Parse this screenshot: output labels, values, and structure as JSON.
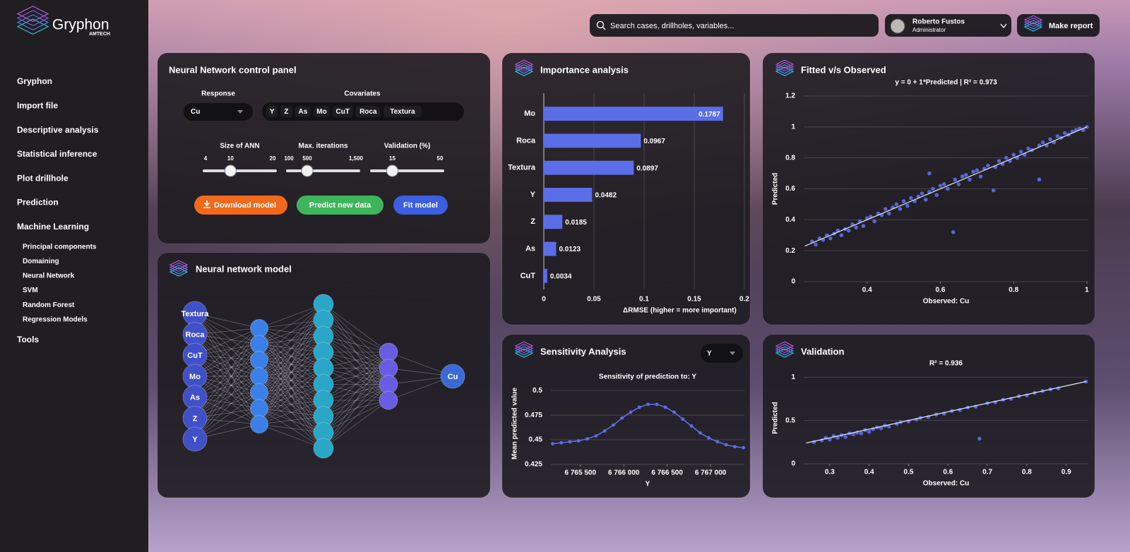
{
  "brand": {
    "name": "Gryphon",
    "tagline": "AMTECH"
  },
  "nav": {
    "items": [
      {
        "label": "Gryphon"
      },
      {
        "label": "Import file"
      },
      {
        "label": "Descriptive analysis"
      },
      {
        "label": "Statistical inference"
      },
      {
        "label": "Plot drillhole"
      },
      {
        "label": "Prediction"
      },
      {
        "label": "Machine Learning",
        "children": [
          "Principal components",
          "Domaining",
          "Neural Network",
          "SVM",
          "Random Forest",
          "Regression Models"
        ]
      },
      {
        "label": "Tools"
      }
    ]
  },
  "header": {
    "search_placeholder": "Search cases, drillholes, variables...",
    "user_name": "Roberto Fustos",
    "user_role": "Administrator",
    "report_button": "Make report"
  },
  "control_panel": {
    "title": "Neural Network control panel",
    "response_label": "Response",
    "response_value": "Cu",
    "covariates_label": "Covariates",
    "covariates": [
      "Y",
      "Z",
      "As",
      "Mo",
      "CuT",
      "Roca",
      "Textura"
    ],
    "sliders": [
      {
        "label": "Size of ANN",
        "min": 4,
        "max": 20,
        "value": 10
      },
      {
        "label": "Max. iterations",
        "min": 100,
        "max": {
          "value": 1500,
          "label": "1,500"
        },
        "value": 500
      },
      {
        "label": "Validation (%)",
        "max": 50,
        "value": 15
      }
    ],
    "buttons": [
      "Download model",
      "Predict new data",
      "Fit model"
    ]
  },
  "nn_model": {
    "title": "Neural network model",
    "inputs": [
      "Textura",
      "Roca",
      "CuT",
      "Mo",
      "As",
      "Z",
      "Y"
    ],
    "hidden_layers": [
      7,
      10,
      4
    ],
    "output": "Cu"
  },
  "chart_data": [
    {
      "type": "bar",
      "orientation": "horizontal",
      "title": "Importance analysis",
      "xlabel": "ΔRMSE (higher = more important)",
      "categories": [
        "Mo",
        "Roca",
        "Textura",
        "Y",
        "Z",
        "As",
        "CuT"
      ],
      "values": [
        0.1787,
        0.0967,
        0.0897,
        0.0482,
        0.0185,
        0.0123,
        0.0034
      ],
      "color": "#5b6ee8",
      "xlim": [
        0,
        0.2
      ],
      "xticks": [
        0,
        0.05,
        0.1,
        0.15,
        0.2
      ],
      "grid": true
    },
    {
      "type": "line",
      "title": "Sensitivity Analysis",
      "subtitle": "Sensitivity of prediction to: Y",
      "selector": "Y",
      "xlabel": "Y",
      "ylabel": "Mean predicted value",
      "color": "#5b6ee8",
      "x": [
        6765180,
        6765280,
        6765380,
        6765480,
        6765580,
        6765680,
        6765780,
        6765880,
        6765980,
        6766080,
        6766180,
        6766280,
        6766380,
        6766480,
        6766580,
        6766680,
        6766780,
        6766880,
        6766980,
        6767080,
        6767180,
        6767280,
        6767380
      ],
      "values": [
        0.446,
        0.447,
        0.448,
        0.449,
        0.451,
        0.454,
        0.459,
        0.465,
        0.472,
        0.478,
        0.483,
        0.486,
        0.486,
        0.483,
        0.478,
        0.471,
        0.464,
        0.457,
        0.452,
        0.448,
        0.445,
        0.443,
        0.442
      ],
      "xlim": [
        6765160,
        6767390
      ],
      "xticks": [
        {
          "value": 6765500,
          "label": "6 765 500"
        },
        {
          "value": 6766000,
          "label": "6 766 000"
        },
        {
          "value": 6766500,
          "label": "6 766 500"
        },
        {
          "value": 6767000,
          "label": "6 767 000"
        }
      ],
      "ylim": [
        0.425,
        0.508
      ],
      "yticks": [
        0.425,
        0.45,
        0.475,
        0.5
      ],
      "grid": true
    },
    {
      "type": "scatter",
      "title": "Fitted v/s Observed",
      "subtitle": "y = 0 + 1*Predicted | R² = 0.973",
      "xlabel": "Observed: Cu",
      "ylabel": "Predicted",
      "color": "#5b6ee8",
      "fit_color": "#e8e8f4",
      "x": [
        0.25,
        0.26,
        0.27,
        0.28,
        0.29,
        0.3,
        0.31,
        0.32,
        0.33,
        0.34,
        0.35,
        0.36,
        0.37,
        0.38,
        0.39,
        0.4,
        0.41,
        0.42,
        0.43,
        0.44,
        0.45,
        0.46,
        0.47,
        0.48,
        0.49,
        0.5,
        0.51,
        0.52,
        0.53,
        0.54,
        0.55,
        0.56,
        0.57,
        0.57,
        0.58,
        0.59,
        0.6,
        0.61,
        0.62,
        0.635,
        0.64,
        0.65,
        0.66,
        0.67,
        0.68,
        0.69,
        0.7,
        0.71,
        0.72,
        0.73,
        0.745,
        0.75,
        0.76,
        0.77,
        0.78,
        0.79,
        0.8,
        0.81,
        0.82,
        0.83,
        0.84,
        0.85,
        0.87,
        0.87,
        0.88,
        0.89,
        0.9,
        0.91,
        0.92,
        0.93,
        0.94,
        0.95,
        0.96,
        0.97,
        0.98,
        0.99,
        1.0
      ],
      "values": [
        0.26,
        0.24,
        0.28,
        0.27,
        0.3,
        0.28,
        0.31,
        0.33,
        0.3,
        0.34,
        0.33,
        0.37,
        0.35,
        0.39,
        0.36,
        0.41,
        0.42,
        0.39,
        0.44,
        0.43,
        0.47,
        0.44,
        0.48,
        0.5,
        0.47,
        0.52,
        0.49,
        0.54,
        0.52,
        0.55,
        0.57,
        0.53,
        0.58,
        0.7,
        0.6,
        0.56,
        0.62,
        0.63,
        0.6,
        0.32,
        0.66,
        0.63,
        0.68,
        0.69,
        0.66,
        0.71,
        0.72,
        0.68,
        0.73,
        0.75,
        0.59,
        0.74,
        0.78,
        0.76,
        0.8,
        0.78,
        0.82,
        0.8,
        0.84,
        0.82,
        0.86,
        0.85,
        0.66,
        0.88,
        0.9,
        0.88,
        0.92,
        0.9,
        0.94,
        0.93,
        0.96,
        0.95,
        0.97,
        0.98,
        0.99,
        0.98,
        1.0
      ],
      "fit_line": {
        "x": [
          0.23,
          1
        ],
        "values": [
          0.23,
          1
        ]
      },
      "xlim": [
        0.227,
        1.004
      ],
      "xticks": [
        0.4,
        0.6,
        0.8,
        1
      ],
      "ylim": [
        0,
        1.2
      ],
      "yticks": [
        0,
        0.2,
        0.4,
        0.6,
        0.8,
        1,
        1.2
      ],
      "grid": true
    },
    {
      "type": "scatter",
      "title": "Validation",
      "subtitle": "R² = 0.936",
      "xlabel": "Observed: Cu",
      "ylabel": "Predicted",
      "color": "#5b6ee8",
      "fit_color": "#e8e8f4",
      "x": [
        0.26,
        0.28,
        0.29,
        0.3,
        0.31,
        0.32,
        0.33,
        0.34,
        0.35,
        0.36,
        0.37,
        0.38,
        0.39,
        0.4,
        0.41,
        0.42,
        0.43,
        0.44,
        0.45,
        0.47,
        0.48,
        0.5,
        0.52,
        0.53,
        0.55,
        0.57,
        0.59,
        0.61,
        0.63,
        0.65,
        0.67,
        0.68,
        0.7,
        0.72,
        0.74,
        0.76,
        0.78,
        0.8,
        0.82,
        0.84,
        0.86,
        0.88,
        0.95
      ],
      "values": [
        0.25,
        0.27,
        0.3,
        0.28,
        0.32,
        0.3,
        0.33,
        0.31,
        0.35,
        0.34,
        0.36,
        0.35,
        0.39,
        0.37,
        0.4,
        0.42,
        0.41,
        0.44,
        0.43,
        0.46,
        0.48,
        0.49,
        0.51,
        0.53,
        0.54,
        0.57,
        0.58,
        0.61,
        0.62,
        0.65,
        0.66,
        0.29,
        0.7,
        0.71,
        0.74,
        0.75,
        0.78,
        0.79,
        0.82,
        0.84,
        0.86,
        0.87,
        0.95
      ],
      "fit_line": {
        "x": [
          0.24,
          0.95
        ],
        "values": [
          0.24,
          0.95
        ]
      },
      "xlim": [
        0.234,
        0.956
      ],
      "xticks": [
        0.3,
        0.4,
        0.5,
        0.6,
        0.7,
        0.8,
        0.9
      ],
      "ylim": [
        0,
        1.06
      ],
      "yticks": [
        0,
        0.5,
        1
      ],
      "grid": true
    }
  ]
}
